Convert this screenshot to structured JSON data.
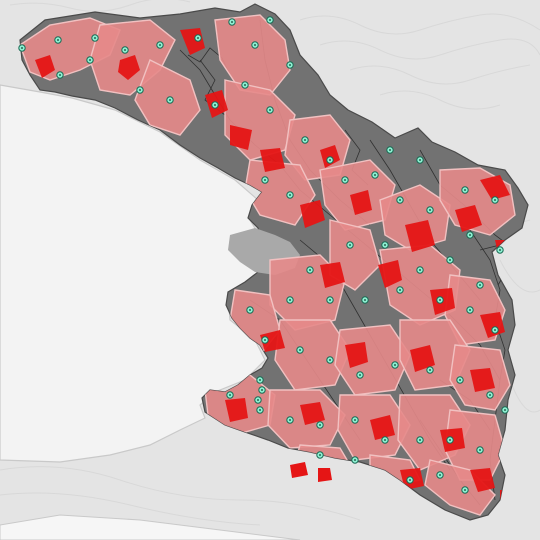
{
  "map": {
    "colors": {
      "land": "#e6e6e6",
      "sea": "#f3f3f3",
      "coastline": "#c9c9c9",
      "department": "#6e6e6e",
      "department_dark": "#555555",
      "roads": "#2a2a2a",
      "catchment_fill": "#e58a8a",
      "catchment_stroke": "#f2c2c2",
      "hotspot": "#e51515",
      "facility_marker": "#8ef0d2",
      "facility_ring": "#1b6b55",
      "inland_water": "#a7a7a7"
    },
    "layers": [
      "relief-basemap",
      "department-area",
      "road-network",
      "catchment-areas",
      "unserved-hotspots",
      "health-facilities"
    ]
  }
}
